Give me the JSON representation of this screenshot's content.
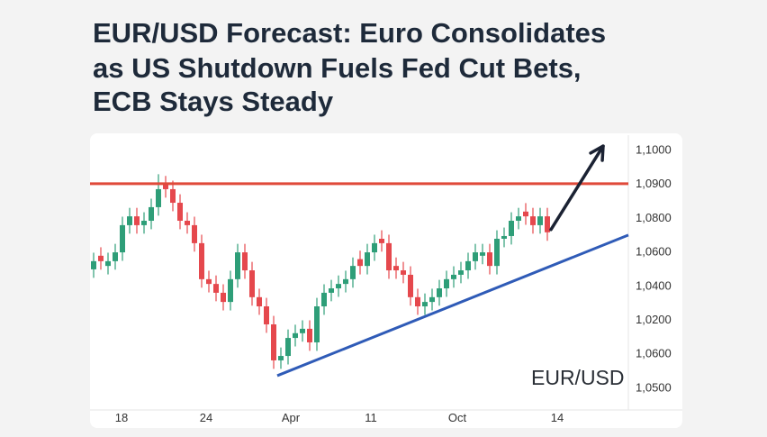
{
  "chart_data": {
    "type": "candlestick",
    "title": [
      "EUR/USD Forecast: Euro Consolidates",
      "as US Shutdown Fuels Fed Cut Bets,",
      "ECB Stays Steady"
    ],
    "label": "EUR/USD",
    "open": [
      1.065,
      1.069,
      1.066,
      1.0674,
      1.07,
      1.078,
      1.0806,
      1.078,
      1.0793,
      1.0833,
      1.09,
      1.0886,
      1.0846,
      1.0793,
      1.078,
      1.0727,
      1.0621,
      1.0607,
      1.0581,
      1.0554,
      1.0621,
      1.07,
      1.0647,
      1.0568,
      1.0541,
      1.0488,
      1.0382,
      1.0395,
      1.0448,
      1.0462,
      1.0475,
      1.0435,
      1.0541,
      1.0581,
      1.0594,
      1.0607,
      1.0621,
      1.068,
      1.066,
      1.07,
      1.074,
      1.0727,
      1.066,
      1.0647,
      1.0634,
      1.0568,
      1.0541,
      1.0554,
      1.0568,
      1.0594,
      1.0621,
      1.0634,
      1.0647,
      1.0674,
      1.069,
      1.07,
      1.066,
      1.074,
      1.0748,
      1.0793,
      1.082,
      1.0806,
      1.078,
      1.0806
    ],
    "high": [
      1.0699,
      1.0715,
      1.0699,
      1.0725,
      1.0805,
      1.0831,
      1.0831,
      1.0818,
      1.0858,
      1.093,
      1.0925,
      1.0911,
      1.0871,
      1.0818,
      1.0805,
      1.0752,
      1.0646,
      1.0632,
      1.0606,
      1.0646,
      1.0725,
      1.0725,
      1.0672,
      1.0593,
      1.0566,
      1.0513,
      1.042,
      1.0473,
      1.0487,
      1.05,
      1.05,
      1.0566,
      1.0606,
      1.0619,
      1.0632,
      1.0646,
      1.0685,
      1.0705,
      1.0725,
      1.0752,
      1.0765,
      1.0752,
      1.0685,
      1.0672,
      1.0659,
      1.0593,
      1.0579,
      1.0593,
      1.0619,
      1.0646,
      1.0659,
      1.0672,
      1.0699,
      1.0725,
      1.0725,
      1.0725,
      1.0765,
      1.0773,
      1.0818,
      1.0831,
      1.0845,
      1.0831,
      1.0831,
      1.0831
    ],
    "low": [
      1.0625,
      1.0649,
      1.0635,
      1.0649,
      1.0675,
      1.0755,
      1.0755,
      1.0755,
      1.0768,
      1.0808,
      1.0861,
      1.0821,
      1.0768,
      1.0755,
      1.0702,
      1.0596,
      1.0582,
      1.0556,
      1.0529,
      1.0529,
      1.0596,
      1.0622,
      1.0543,
      1.0516,
      1.0463,
      1.0357,
      1.0357,
      1.037,
      1.0423,
      1.0437,
      1.041,
      1.041,
      1.0516,
      1.0556,
      1.0569,
      1.0582,
      1.0596,
      1.0635,
      1.0635,
      1.0675,
      1.0702,
      1.0622,
      1.0622,
      1.0609,
      1.0543,
      1.0516,
      1.0516,
      1.0529,
      1.0543,
      1.0569,
      1.0596,
      1.0609,
      1.0622,
      1.0649,
      1.0665,
      1.0635,
      1.0635,
      1.0715,
      1.0723,
      1.0768,
      1.0781,
      1.0755,
      1.0755,
      1.0734
    ],
    "close": [
      1.0674,
      1.0674,
      1.0674,
      1.07,
      1.078,
      1.0806,
      1.078,
      1.0793,
      1.0833,
      1.0886,
      1.0886,
      1.0846,
      1.0793,
      1.078,
      1.0727,
      1.0621,
      1.0607,
      1.0581,
      1.0554,
      1.0621,
      1.07,
      1.0647,
      1.0568,
      1.0541,
      1.0488,
      1.0382,
      1.0395,
      1.0448,
      1.0462,
      1.0475,
      1.0435,
      1.0541,
      1.0581,
      1.0594,
      1.0607,
      1.0621,
      1.066,
      1.066,
      1.07,
      1.0727,
      1.0727,
      1.0647,
      1.0647,
      1.0634,
      1.0568,
      1.0541,
      1.0554,
      1.0568,
      1.0594,
      1.0621,
      1.0634,
      1.0647,
      1.0674,
      1.07,
      1.07,
      1.066,
      1.074,
      1.0748,
      1.0793,
      1.0806,
      1.0806,
      1.078,
      1.0806,
      1.0759
    ],
    "up_color": "#2e9e78",
    "down_color": "#e5484d",
    "xlim": [
      -0.5,
      74.25
    ],
    "ylim": [
      1.0236,
      1.1045
    ],
    "xticks": [
      {
        "value": 3.875,
        "label": "18"
      },
      {
        "value": 15.625,
        "label": "24"
      },
      {
        "value": 27.375,
        "label": "Apr"
      },
      {
        "value": 38.5,
        "label": "11"
      },
      {
        "value": 50.5,
        "label": "Oct"
      },
      {
        "value": 64.375,
        "label": "14"
      }
    ],
    "y_labels": [
      "1,1000",
      "1,0900",
      "1,0800",
      "1,0600",
      "1,0400",
      "1,0200",
      "1,0600",
      "1,0500"
    ],
    "resistance": {
      "value": 1.0902,
      "color": "#e04a3a"
    },
    "trendline": {
      "x": [
        25.5,
        74.25
      ],
      "y": [
        1.0337,
        1.0751
      ],
      "color": "#2f5bb7"
    },
    "arrow": {
      "x": [
        63.5,
        70.75
      ],
      "y": [
        1.0767,
        1.1013
      ],
      "color": "#1b2233"
    }
  }
}
